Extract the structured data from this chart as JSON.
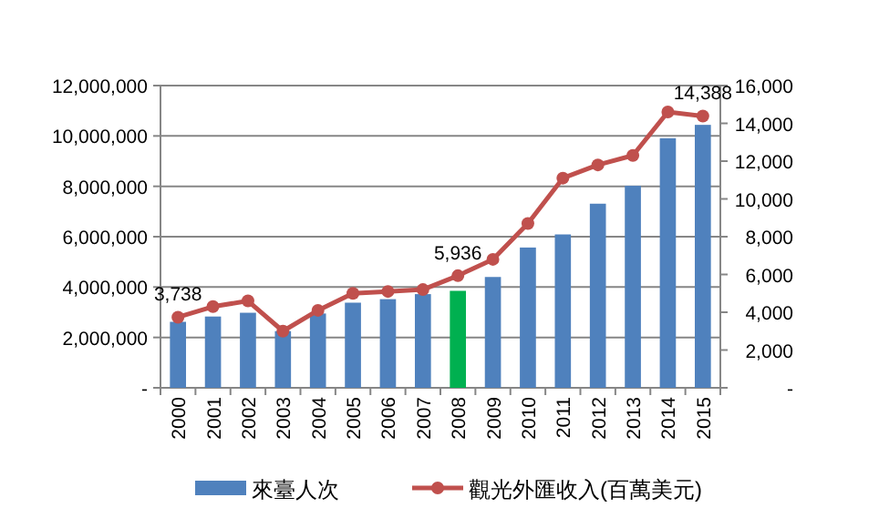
{
  "chart_data": {
    "type": "bar",
    "categories": [
      "2000",
      "2001",
      "2002",
      "2003",
      "2004",
      "2005",
      "2006",
      "2007",
      "2008",
      "2009",
      "2010",
      "2011",
      "2012",
      "2013",
      "2014",
      "2015"
    ],
    "series": [
      {
        "name": "來臺人次",
        "color": "#4f81bd",
        "colors": [
          "#4f81bd",
          "#4f81bd",
          "#4f81bd",
          "#4f81bd",
          "#4f81bd",
          "#4f81bd",
          "#4f81bd",
          "#4f81bd",
          "#00b050",
          "#4f81bd",
          "#4f81bd",
          "#4f81bd",
          "#4f81bd",
          "#4f81bd",
          "#4f81bd",
          "#4f81bd"
        ],
        "values": [
          2620000,
          2830000,
          2980000,
          2250000,
          2950000,
          3380000,
          3520000,
          3720000,
          3850000,
          4400000,
          5570000,
          6090000,
          7310000,
          8020000,
          9910000,
          10440000
        ]
      },
      {
        "name": "觀光外匯收入(百萬美元)",
        "type": "line",
        "axis": "y2",
        "color": "#c0504d",
        "values": [
          3738,
          4300,
          4600,
          3000,
          4100,
          5000,
          5100,
          5200,
          5936,
          6800,
          8700,
          11100,
          11800,
          12300,
          14600,
          14388
        ],
        "value_labels": [
          "3,738",
          null,
          null,
          null,
          null,
          null,
          null,
          null,
          "5,936",
          null,
          null,
          null,
          null,
          null,
          null,
          "14,388"
        ]
      }
    ],
    "ylim": [
      0,
      12000000
    ],
    "yticks": [
      {
        "value": 0,
        "label": "-"
      },
      {
        "value": 2000000,
        "label": "2,000,000"
      },
      {
        "value": 4000000,
        "label": "4,000,000"
      },
      {
        "value": 6000000,
        "label": "6,000,000"
      },
      {
        "value": 8000000,
        "label": "8,000,000"
      },
      {
        "value": 10000000,
        "label": "10,000,000"
      },
      {
        "value": 12000000,
        "label": "12,000,000"
      }
    ],
    "y2lim": [
      0,
      16000
    ],
    "y2ticks": [
      {
        "value": 0,
        "label": "-"
      },
      {
        "value": 2000,
        "label": "2,000"
      },
      {
        "value": 4000,
        "label": "4,000"
      },
      {
        "value": 6000,
        "label": "6,000"
      },
      {
        "value": 8000,
        "label": "8,000"
      },
      {
        "value": 10000,
        "label": "10,000"
      },
      {
        "value": 12000,
        "label": "12,000"
      },
      {
        "value": 14000,
        "label": "14,000"
      },
      {
        "value": 16000,
        "label": "16,000"
      }
    ],
    "grid": "y",
    "legend": "bottom",
    "marker": "circle",
    "line_style": "solid"
  }
}
